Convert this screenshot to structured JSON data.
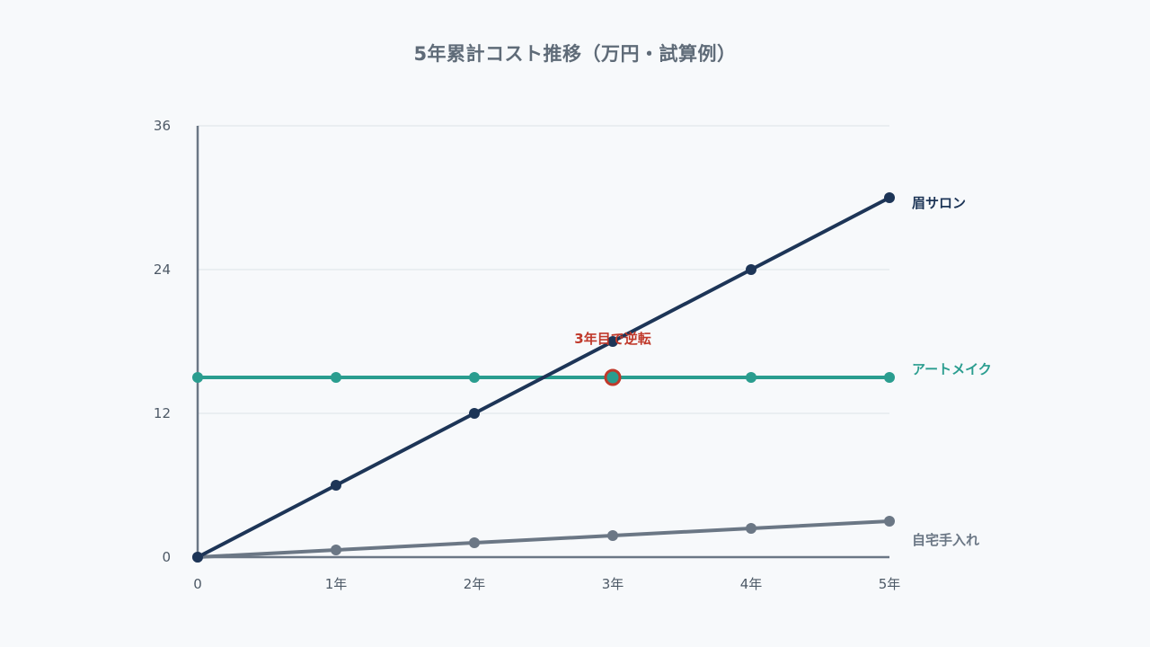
{
  "chart_data": {
    "type": "line",
    "title": "5年累計コスト推移（万円・試算例）",
    "categories": [
      "0",
      "1年",
      "2年",
      "3年",
      "4年",
      "5年"
    ],
    "x": [
      0,
      1,
      2,
      3,
      4,
      5
    ],
    "ylim": [
      0,
      36
    ],
    "yticks": [
      "0",
      "12",
      "24",
      "36"
    ],
    "grid": true,
    "series": [
      {
        "name": "眉サロン",
        "values": [
          0,
          6,
          12,
          18,
          24,
          30
        ],
        "color": "#1d3557"
      },
      {
        "name": "アートメイク",
        "values": [
          15,
          15,
          15,
          15,
          15,
          15
        ],
        "color": "#2a9d8f"
      },
      {
        "name": "自宅手入れ",
        "values": [
          0,
          0.6,
          1.2,
          1.8,
          2.4,
          3.0
        ],
        "color": "#6b7785"
      }
    ],
    "annotation": {
      "text": "3年目で逆転",
      "x": 3,
      "y": 15,
      "color": "#c0392b"
    }
  }
}
